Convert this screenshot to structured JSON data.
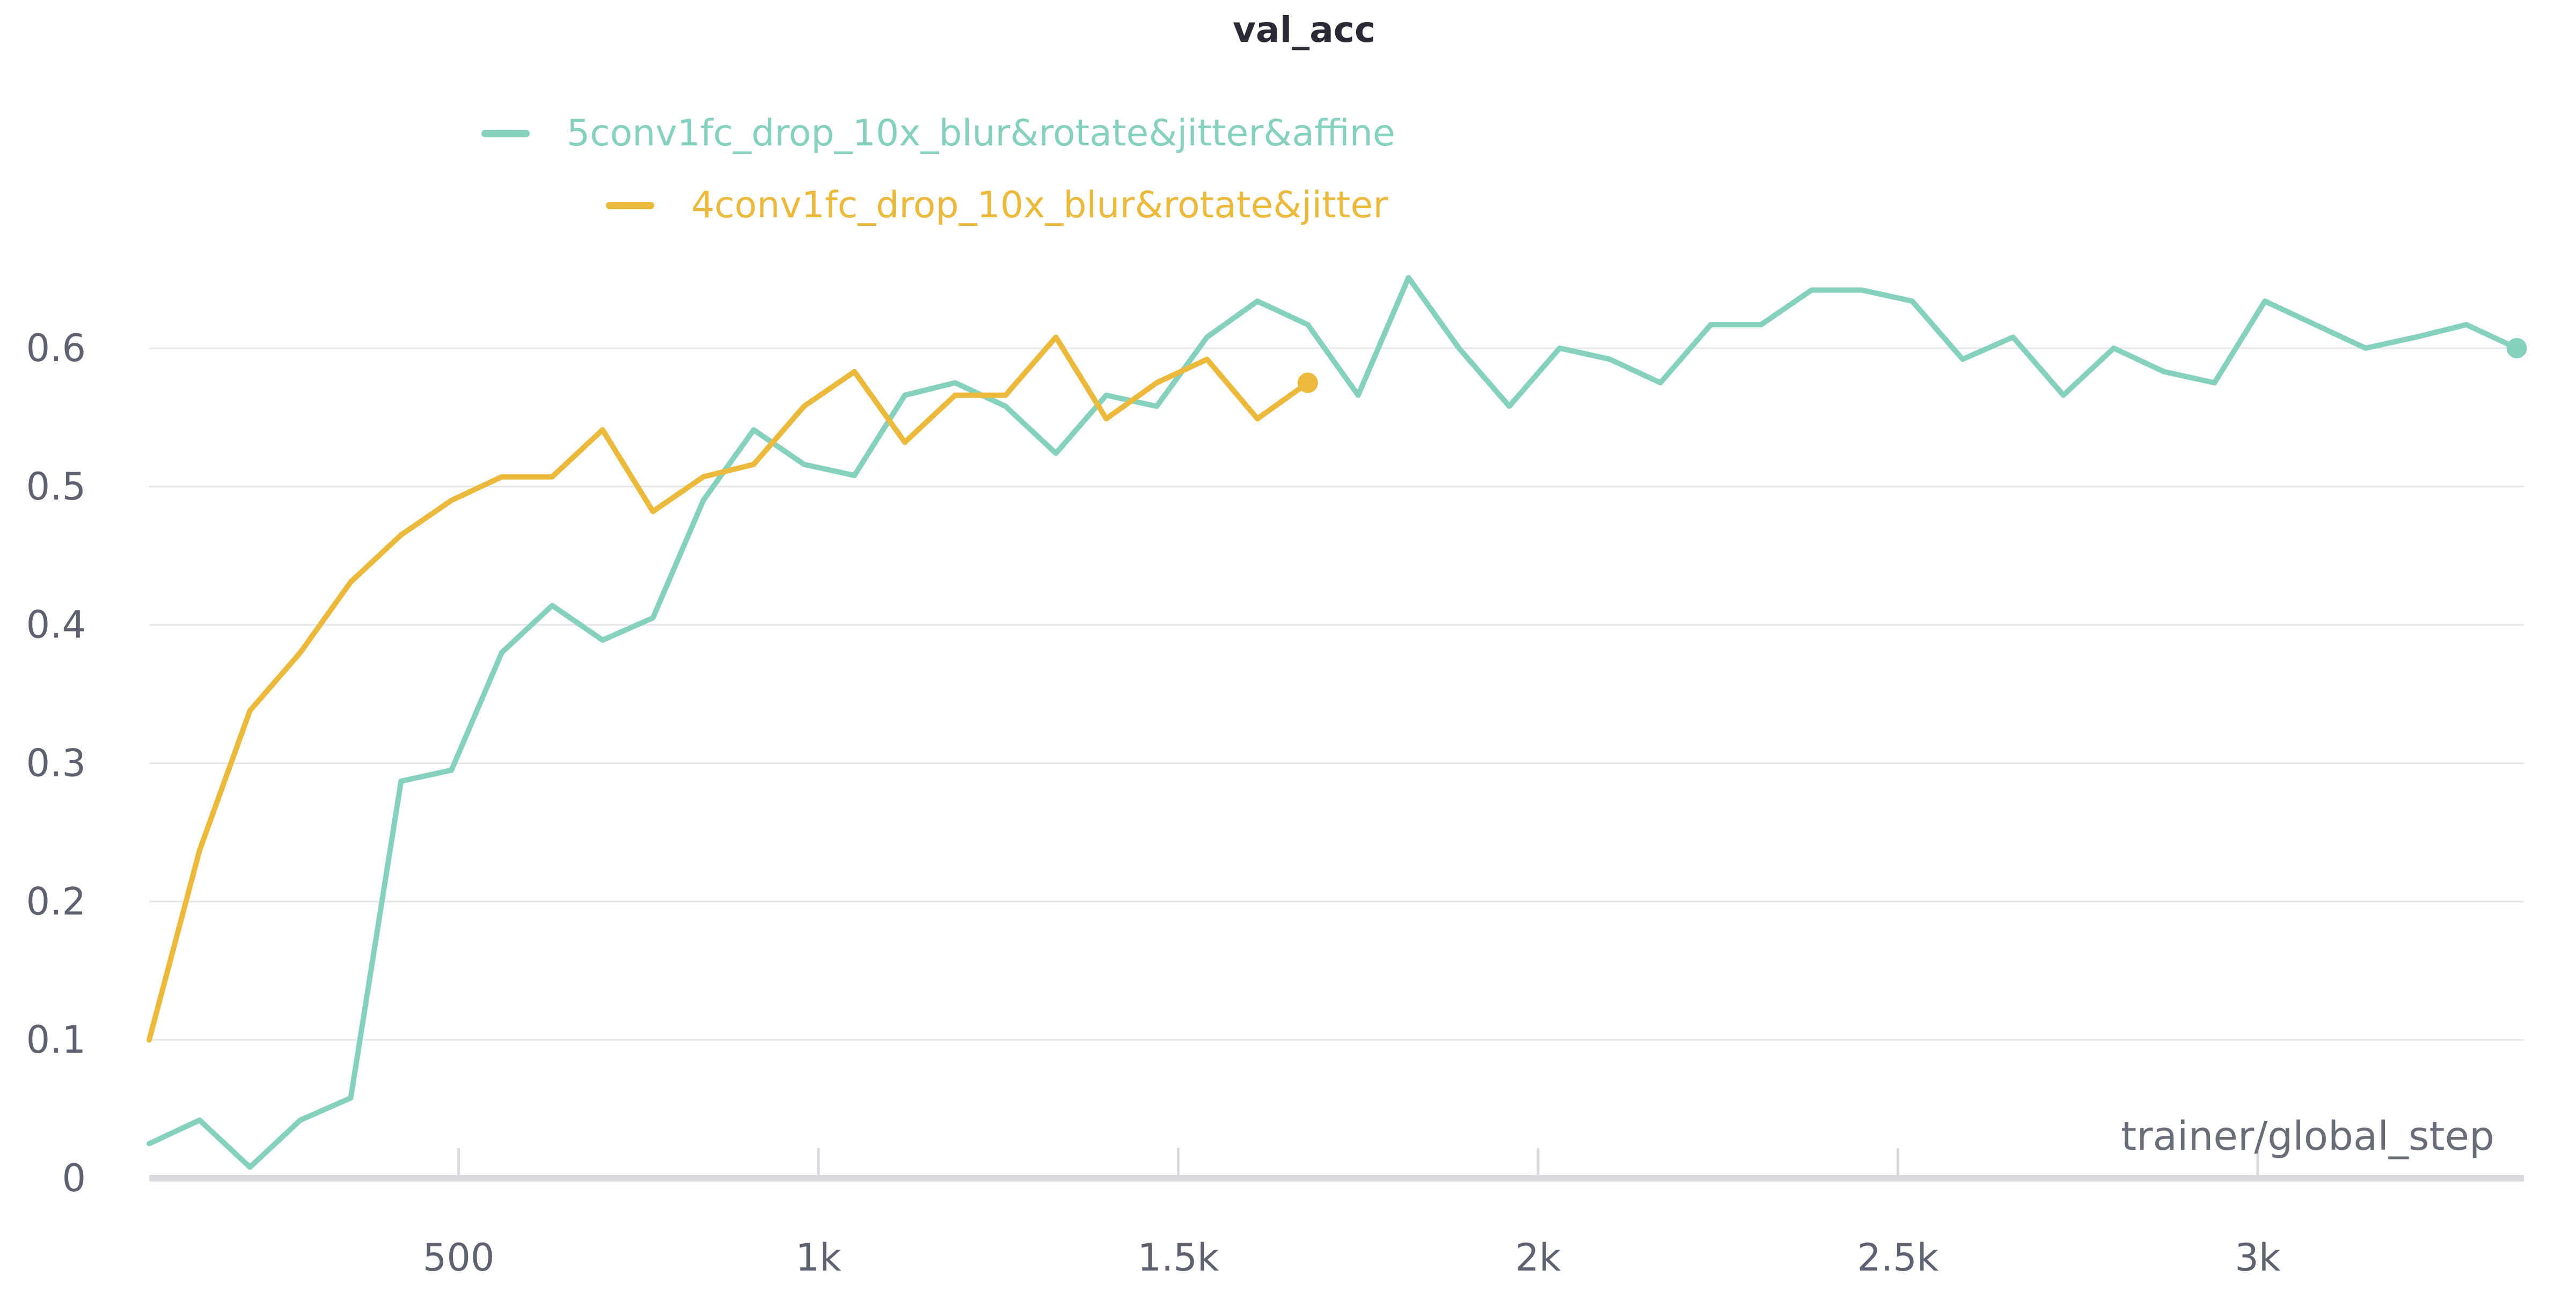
{
  "chart_data": {
    "type": "line",
    "title": "val_acc",
    "xlabel": "trainer/global_step",
    "ylabel": "",
    "xlim": [
      70,
      3370
    ],
    "ylim": [
      0,
      0.65
    ],
    "x_ticks": [
      500,
      1000,
      1500,
      2000,
      2500,
      3000
    ],
    "x_tick_labels": [
      "500",
      "1k",
      "1.5k",
      "2k",
      "2.5k",
      "3k"
    ],
    "y_ticks": [
      0,
      0.1,
      0.2,
      0.3,
      0.4,
      0.5,
      0.6
    ],
    "y_tick_labels": [
      "0",
      "0.1",
      "0.2",
      "0.3",
      "0.4",
      "0.5",
      "0.6"
    ],
    "grid": true,
    "legend_position": "top-center",
    "series": [
      {
        "name": "5conv1fc_drop_10x_blur&rotate&jitter&affine",
        "color": "#85d1bd",
        "x": [
          70,
          140,
          210,
          280,
          350,
          420,
          490,
          560,
          630,
          700,
          770,
          840,
          910,
          980,
          1050,
          1120,
          1190,
          1260,
          1330,
          1400,
          1470,
          1540,
          1610,
          1680,
          1750,
          1820,
          1890,
          1960,
          2030,
          2100,
          2170,
          2240,
          2310,
          2380,
          2450,
          2520,
          2590,
          2660,
          2730,
          2800,
          2870,
          2940,
          3010,
          3080,
          3150,
          3220,
          3290,
          3360
        ],
        "y": [
          0.025,
          0.042,
          0.008,
          0.042,
          0.058,
          0.287,
          0.295,
          0.38,
          0.414,
          0.389,
          0.405,
          0.49,
          0.541,
          0.516,
          0.508,
          0.566,
          0.575,
          0.558,
          0.524,
          0.566,
          0.558,
          0.608,
          0.634,
          0.617,
          0.566,
          0.651,
          0.6,
          0.558,
          0.6,
          0.592,
          0.575,
          0.617,
          0.617,
          0.642,
          0.642,
          0.634,
          0.592,
          0.608,
          0.566,
          0.6,
          0.583,
          0.575,
          0.634,
          0.617,
          0.6,
          0.608,
          0.617,
          0.6
        ]
      },
      {
        "name": "4conv1fc_drop_10x_blur&rotate&jitter",
        "color": "#ebba3c",
        "x": [
          70,
          140,
          210,
          280,
          350,
          420,
          490,
          560,
          630,
          700,
          770,
          840,
          910,
          980,
          1050,
          1120,
          1190,
          1260,
          1330,
          1400,
          1470,
          1540,
          1610,
          1680
        ],
        "y": [
          0.1,
          0.237,
          0.338,
          0.38,
          0.431,
          0.465,
          0.49,
          0.507,
          0.507,
          0.541,
          0.482,
          0.507,
          0.516,
          0.558,
          0.583,
          0.532,
          0.566,
          0.566,
          0.608,
          0.549,
          0.575,
          0.592,
          0.549,
          0.575
        ]
      }
    ]
  }
}
